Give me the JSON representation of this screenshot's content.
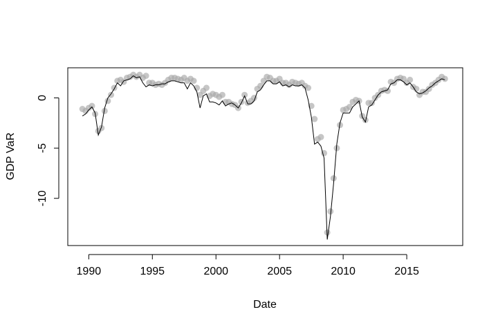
{
  "chart_data": {
    "type": "line",
    "x_label": "Date",
    "y_label": "GDP VaR",
    "xlim": [
      1988.35,
      2019.4
    ],
    "ylim": [
      -14.7,
      3.0
    ],
    "xticks": [
      1990,
      1995,
      2000,
      2005,
      2010,
      2015
    ],
    "yticks": [
      -10,
      -5,
      0
    ],
    "x": [
      1989.5,
      1989.75,
      1990,
      1990.25,
      1990.5,
      1990.75,
      1991,
      1991.25,
      1991.5,
      1991.75,
      1992,
      1992.25,
      1992.5,
      1992.75,
      1993,
      1993.25,
      1993.5,
      1993.75,
      1994,
      1994.25,
      1994.5,
      1994.75,
      1995,
      1995.25,
      1995.5,
      1995.75,
      1996,
      1996.25,
      1996.5,
      1996.75,
      1997,
      1997.25,
      1997.5,
      1997.75,
      1998,
      1998.25,
      1998.5,
      1998.75,
      1999,
      1999.25,
      1999.5,
      1999.75,
      2000,
      2000.25,
      2000.5,
      2000.75,
      2001,
      2001.25,
      2001.5,
      2001.75,
      2002,
      2002.25,
      2002.5,
      2002.75,
      2003,
      2003.25,
      2003.5,
      2003.75,
      2004,
      2004.25,
      2004.5,
      2004.75,
      2005,
      2005.25,
      2005.5,
      2005.75,
      2006,
      2006.25,
      2006.5,
      2006.75,
      2007,
      2007.25,
      2007.5,
      2007.75,
      2008,
      2008.25,
      2008.5,
      2008.75,
      2009,
      2009.25,
      2009.5,
      2009.75,
      2010,
      2010.25,
      2010.5,
      2010.75,
      2011,
      2011.25,
      2011.5,
      2011.75,
      2012,
      2012.25,
      2012.5,
      2012.75,
      2013,
      2013.25,
      2013.5,
      2013.75,
      2014,
      2014.25,
      2014.5,
      2014.75,
      2015,
      2015.25,
      2015.5,
      2015.75,
      2016,
      2016.25,
      2016.5,
      2016.75,
      2017,
      2017.25,
      2017.5,
      2017.75,
      2018
    ],
    "series": [
      {
        "kind": "points",
        "color": "#a8a8a8",
        "values": [
          -1.1,
          -1.3,
          -1.0,
          -0.8,
          -1.6,
          -3.3,
          -3.0,
          -1.3,
          -0.3,
          0.3,
          1.0,
          1.7,
          1.8,
          1.6,
          2.0,
          2.1,
          2.3,
          2.1,
          2.3,
          2.0,
          2.2,
          1.5,
          1.5,
          1.3,
          1.4,
          1.3,
          1.5,
          1.8,
          2.0,
          2.0,
          1.9,
          1.8,
          2.0,
          1.7,
          1.9,
          1.7,
          1.0,
          0.3,
          0.7,
          1.0,
          0.2,
          0.4,
          0.3,
          0.1,
          0.3,
          -0.4,
          -0.4,
          -0.6,
          -0.7,
          -1.0,
          -0.4,
          0.3,
          -0.5,
          -0.3,
          0.0,
          0.9,
          1.2,
          1.7,
          2.1,
          2.0,
          1.7,
          1.7,
          1.9,
          1.5,
          1.5,
          1.3,
          1.6,
          1.5,
          1.4,
          1.5,
          1.2,
          1.0,
          -0.8,
          -2.1,
          -4.1,
          -3.9,
          -5.5,
          -13.4,
          -11.3,
          -8.0,
          -5.0,
          -2.7,
          -1.2,
          -1.1,
          -0.9,
          -0.4,
          -0.2,
          -0.3,
          -1.8,
          -2.2,
          -0.5,
          -0.5,
          0.0,
          0.3,
          0.7,
          0.8,
          0.7,
          1.6,
          1.5,
          1.9,
          2.0,
          1.9,
          1.5,
          1.8,
          1.1,
          0.9,
          0.3,
          0.6,
          0.6,
          0.9,
          1.3,
          1.5,
          1.8,
          2.1,
          1.9
        ]
      },
      {
        "kind": "line",
        "color": "#000000",
        "values": [
          -1.8,
          -1.6,
          -1.2,
          -0.9,
          -1.5,
          -3.7,
          -2.9,
          -1.0,
          0.0,
          0.4,
          0.9,
          1.5,
          1.2,
          1.7,
          1.8,
          1.9,
          2.2,
          2.0,
          2.1,
          1.5,
          1.1,
          1.3,
          1.2,
          1.3,
          1.3,
          1.4,
          1.4,
          1.6,
          1.7,
          1.7,
          1.6,
          1.5,
          1.5,
          0.9,
          1.5,
          1.2,
          0.6,
          -1.0,
          0.2,
          0.4,
          -0.4,
          -0.4,
          -0.5,
          -0.7,
          -0.3,
          -0.8,
          -0.6,
          -0.5,
          -0.7,
          -1.0,
          -0.5,
          0.2,
          -0.6,
          -0.6,
          -0.3,
          0.6,
          0.8,
          1.3,
          1.7,
          1.7,
          1.4,
          1.4,
          1.6,
          1.2,
          1.3,
          1.1,
          1.3,
          1.2,
          1.2,
          1.3,
          1.0,
          -0.2,
          -1.9,
          -4.6,
          -4.4,
          -4.8,
          -6.0,
          -14.1,
          -11.8,
          -8.5,
          -4.6,
          -2.5,
          -1.5,
          -1.5,
          -1.5,
          -0.9,
          -0.6,
          -0.3,
          -1.9,
          -2.4,
          -0.9,
          -0.7,
          -0.2,
          0.3,
          0.6,
          0.7,
          0.8,
          1.4,
          1.5,
          1.8,
          1.8,
          1.6,
          1.3,
          1.5,
          1.1,
          0.6,
          0.4,
          0.5,
          0.7,
          1.0,
          1.2,
          1.5,
          1.7,
          1.9,
          1.8
        ]
      }
    ]
  }
}
